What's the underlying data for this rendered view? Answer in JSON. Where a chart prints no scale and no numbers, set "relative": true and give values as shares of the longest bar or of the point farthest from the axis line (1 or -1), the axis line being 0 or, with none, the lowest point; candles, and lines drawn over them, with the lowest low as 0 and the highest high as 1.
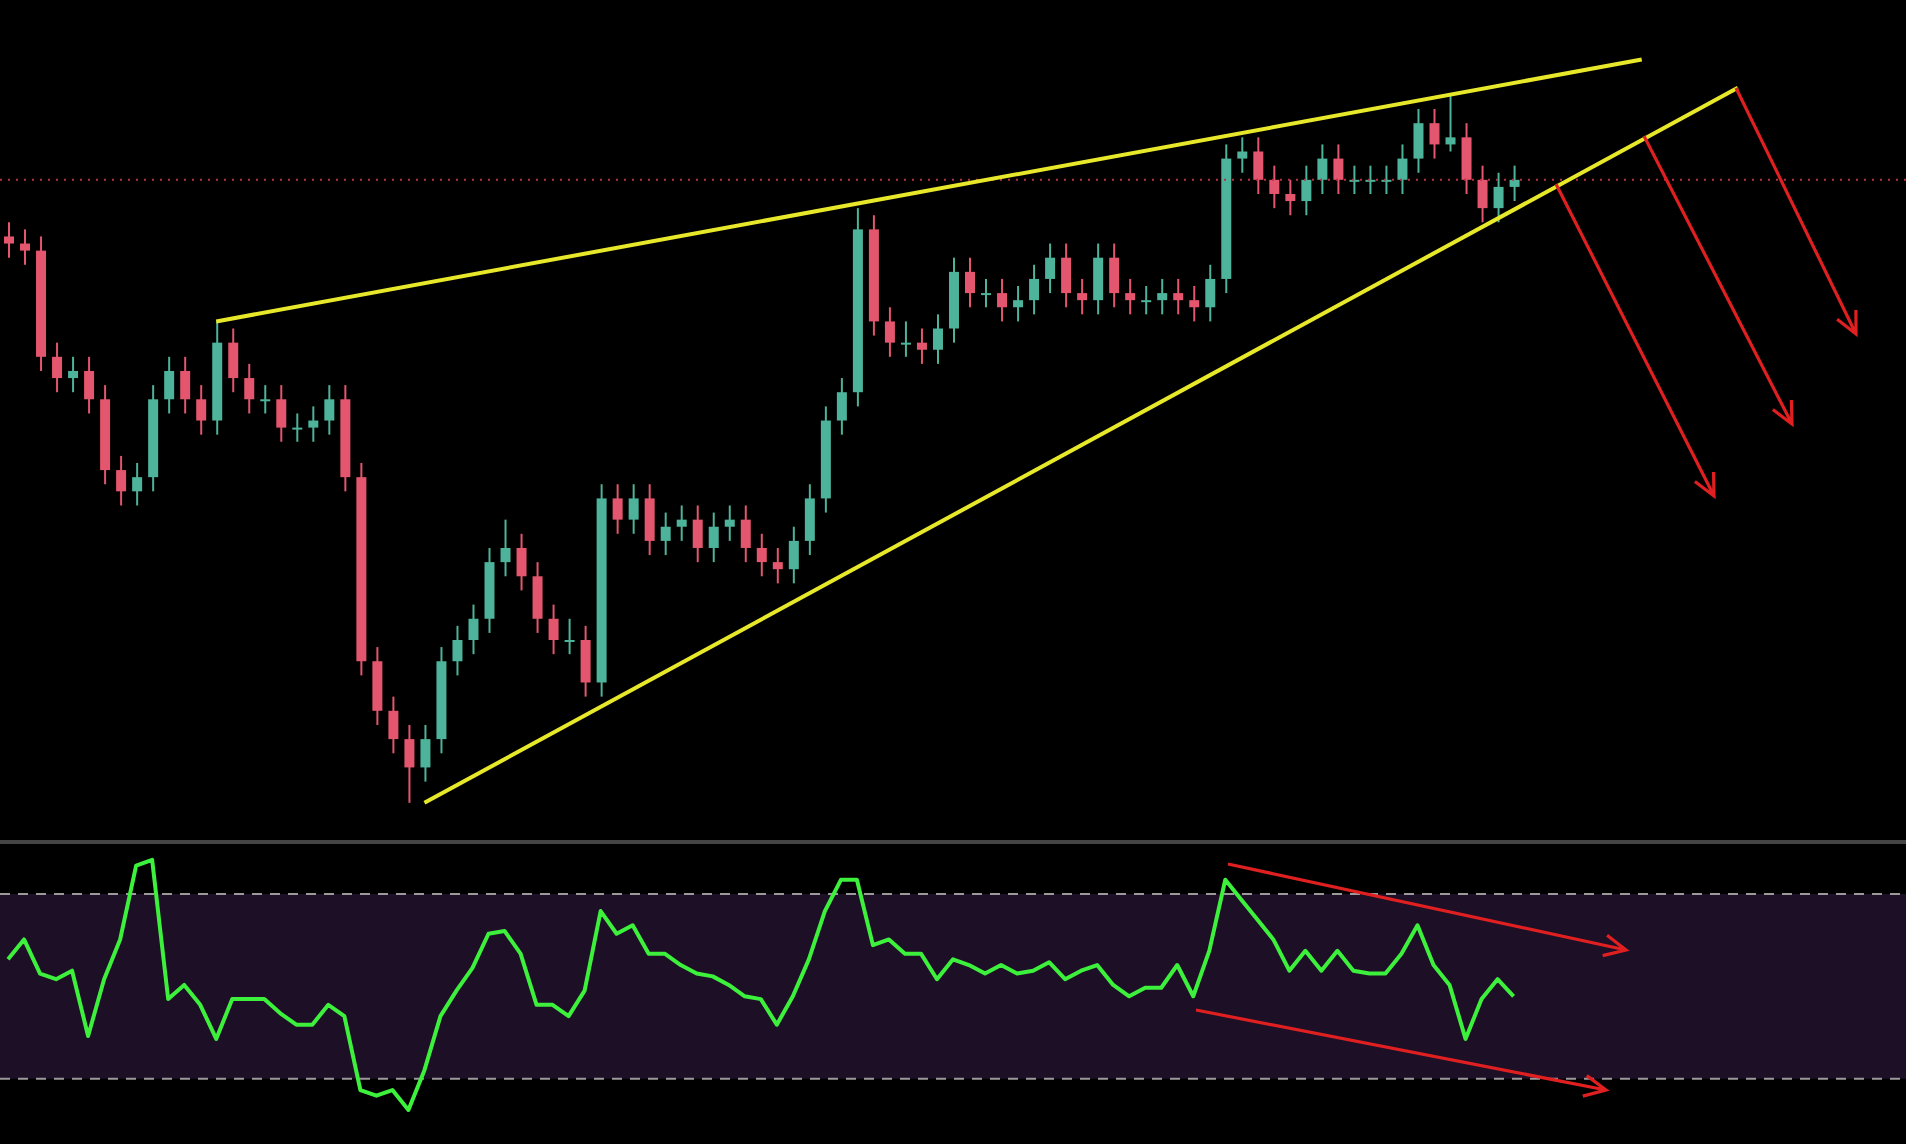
{
  "chart_data": [
    {
      "type": "candlestick",
      "relative": true,
      "tick_labels": false,
      "categories": [
        null,
        null,
        null,
        null,
        null,
        null,
        null,
        null,
        null,
        null,
        null,
        null,
        null,
        null,
        null,
        null,
        null,
        null,
        null,
        null,
        null,
        null,
        null,
        null,
        null,
        null,
        null,
        null,
        null,
        null,
        null,
        null,
        null,
        null,
        null,
        null,
        null,
        null,
        null,
        null,
        null,
        null,
        null,
        null,
        null,
        null,
        null,
        null,
        null,
        null,
        null,
        null,
        null,
        null,
        null,
        null,
        null,
        null,
        null,
        null,
        null,
        null,
        null,
        null,
        null,
        null,
        null,
        null,
        null,
        null,
        null,
        null,
        null,
        null,
        null,
        null,
        null,
        null,
        null,
        null,
        null,
        null,
        null,
        null,
        null,
        null,
        null,
        null,
        null,
        null,
        null,
        null,
        null,
        null,
        null,
        null,
        null,
        null,
        null,
        null,
        null,
        null,
        null,
        null,
        null,
        null,
        null,
        null,
        null,
        null,
        null,
        null,
        null,
        null,
        null,
        null,
        null,
        null,
        null
      ],
      "colors": [
        "#e3566d",
        "#e3566d",
        "#e3566d",
        "#e3566d",
        "#4db39a",
        "#e3566d",
        "#e3566d",
        "#e3566d",
        "#4db39a",
        "#4db39a",
        "#4db39a",
        "#e3566d",
        "#e3566d",
        "#4db39a",
        "#e3566d",
        "#e3566d",
        "#4db39a",
        "#e3566d",
        "#4db39a",
        "#4db39a",
        "#4db39a",
        "#e3566d",
        "#e3566d",
        "#e3566d",
        "#e3566d",
        "#e3566d",
        "#4db39a",
        "#4db39a",
        "#4db39a",
        "#4db39a",
        "#4db39a",
        "#4db39a",
        "#e3566d",
        "#e3566d",
        "#e3566d",
        "#4db39a",
        "#e3566d",
        "#4db39a",
        "#e3566d",
        "#4db39a",
        "#e3566d",
        "#4db39a",
        "#4db39a",
        "#e3566d",
        "#4db39a",
        "#4db39a",
        "#e3566d",
        "#e3566d",
        "#e3566d",
        "#4db39a",
        "#4db39a",
        "#4db39a",
        "#4db39a",
        "#4db39a",
        "#e3566d",
        "#e3566d",
        "#4db39a",
        "#e3566d",
        "#4db39a",
        "#4db39a",
        "#e3566d",
        "#4db39a",
        "#e3566d",
        "#4db39a",
        "#4db39a",
        "#4db39a",
        "#e3566d",
        "#e3566d",
        "#4db39a",
        "#e3566d",
        "#e3566d",
        "#4db39a",
        "#4db39a",
        "#e3566d",
        "#e3566d",
        "#4db39a",
        "#4db39a",
        "#4db39a",
        "#e3566d",
        "#e3566d",
        "#e3566d",
        "#4db39a",
        "#4db39a",
        "#e3566d",
        "#4db39a",
        "#4db39a",
        "#4db39a",
        "#4db39a",
        "#4db39a",
        "#e3566d",
        "#4db39a",
        "#e3566d",
        "#e3566d",
        "#4db39a",
        "#4db39a",
        null,
        null,
        null,
        null,
        null,
        null,
        null,
        null,
        null,
        null,
        null,
        null,
        null,
        null,
        null,
        null,
        null,
        null,
        null,
        null,
        null,
        null,
        null,
        null
      ],
      "ohlc": [
        [
          0.8,
          0.82,
          0.77,
          0.79
        ],
        [
          0.79,
          0.81,
          0.76,
          0.78
        ],
        [
          0.78,
          0.8,
          0.61,
          0.63
        ],
        [
          0.63,
          0.65,
          0.58,
          0.6
        ],
        [
          0.6,
          0.63,
          0.58,
          0.61
        ],
        [
          0.61,
          0.63,
          0.55,
          0.57
        ],
        [
          0.57,
          0.59,
          0.45,
          0.47
        ],
        [
          0.47,
          0.49,
          0.42,
          0.44
        ],
        [
          0.44,
          0.48,
          0.42,
          0.46
        ],
        [
          0.46,
          0.59,
          0.44,
          0.57
        ],
        [
          0.57,
          0.63,
          0.55,
          0.61
        ],
        [
          0.61,
          0.63,
          0.55,
          0.57
        ],
        [
          0.57,
          0.59,
          0.52,
          0.54
        ],
        [
          0.54,
          0.68,
          0.52,
          0.65
        ],
        [
          0.65,
          0.67,
          0.58,
          0.6
        ],
        [
          0.6,
          0.62,
          0.55,
          0.57
        ],
        [
          0.57,
          0.59,
          0.55,
          0.57
        ],
        [
          0.57,
          0.59,
          0.51,
          0.53
        ],
        [
          0.53,
          0.55,
          0.51,
          0.53
        ],
        [
          0.53,
          0.56,
          0.51,
          0.54
        ],
        [
          0.54,
          0.59,
          0.52,
          0.57
        ],
        [
          0.57,
          0.59,
          0.44,
          0.46
        ],
        [
          0.46,
          0.48,
          0.18,
          0.2
        ],
        [
          0.2,
          0.22,
          0.11,
          0.13
        ],
        [
          0.13,
          0.15,
          0.07,
          0.09
        ],
        [
          0.09,
          0.11,
          0.0,
          0.05
        ],
        [
          0.05,
          0.11,
          0.03,
          0.09
        ],
        [
          0.09,
          0.22,
          0.07,
          0.2
        ],
        [
          0.2,
          0.25,
          0.18,
          0.23
        ],
        [
          0.23,
          0.28,
          0.21,
          0.26
        ],
        [
          0.26,
          0.36,
          0.24,
          0.34
        ],
        [
          0.34,
          0.4,
          0.32,
          0.36
        ],
        [
          0.36,
          0.38,
          0.3,
          0.32
        ],
        [
          0.32,
          0.34,
          0.24,
          0.26
        ],
        [
          0.26,
          0.28,
          0.21,
          0.23
        ],
        [
          0.23,
          0.26,
          0.21,
          0.23
        ],
        [
          0.23,
          0.25,
          0.15,
          0.17
        ],
        [
          0.17,
          0.45,
          0.15,
          0.43
        ],
        [
          0.43,
          0.45,
          0.38,
          0.4
        ],
        [
          0.4,
          0.45,
          0.38,
          0.43
        ],
        [
          0.43,
          0.45,
          0.35,
          0.37
        ],
        [
          0.37,
          0.41,
          0.35,
          0.39
        ],
        [
          0.39,
          0.42,
          0.37,
          0.4
        ],
        [
          0.4,
          0.42,
          0.34,
          0.36
        ],
        [
          0.36,
          0.41,
          0.34,
          0.39
        ],
        [
          0.39,
          0.42,
          0.37,
          0.4
        ],
        [
          0.4,
          0.42,
          0.34,
          0.36
        ],
        [
          0.36,
          0.38,
          0.32,
          0.34
        ],
        [
          0.34,
          0.36,
          0.31,
          0.33
        ],
        [
          0.33,
          0.39,
          0.31,
          0.37
        ],
        [
          0.37,
          0.45,
          0.35,
          0.43
        ],
        [
          0.43,
          0.56,
          0.41,
          0.54
        ],
        [
          0.54,
          0.6,
          0.52,
          0.58
        ],
        [
          0.58,
          0.84,
          0.56,
          0.81
        ],
        [
          0.81,
          0.83,
          0.66,
          0.68
        ],
        [
          0.68,
          0.7,
          0.63,
          0.65
        ],
        [
          0.65,
          0.68,
          0.63,
          0.65
        ],
        [
          0.65,
          0.67,
          0.62,
          0.64
        ],
        [
          0.64,
          0.69,
          0.62,
          0.67
        ],
        [
          0.67,
          0.77,
          0.65,
          0.75
        ],
        [
          0.75,
          0.77,
          0.7,
          0.72
        ],
        [
          0.72,
          0.74,
          0.7,
          0.72
        ],
        [
          0.72,
          0.74,
          0.68,
          0.7
        ],
        [
          0.7,
          0.73,
          0.68,
          0.71
        ],
        [
          0.71,
          0.76,
          0.69,
          0.74
        ],
        [
          0.74,
          0.79,
          0.72,
          0.77
        ],
        [
          0.77,
          0.79,
          0.7,
          0.72
        ],
        [
          0.72,
          0.74,
          0.69,
          0.71
        ],
        [
          0.71,
          0.79,
          0.69,
          0.77
        ],
        [
          0.77,
          0.79,
          0.7,
          0.72
        ],
        [
          0.72,
          0.74,
          0.69,
          0.71
        ],
        [
          0.71,
          0.73,
          0.69,
          0.71
        ],
        [
          0.71,
          0.74,
          0.69,
          0.72
        ],
        [
          0.72,
          0.74,
          0.69,
          0.71
        ],
        [
          0.71,
          0.73,
          0.68,
          0.7
        ],
        [
          0.7,
          0.76,
          0.68,
          0.74
        ],
        [
          0.74,
          0.93,
          0.72,
          0.91
        ],
        [
          0.91,
          0.94,
          0.89,
          0.92
        ],
        [
          0.92,
          0.94,
          0.86,
          0.88
        ],
        [
          0.88,
          0.9,
          0.84,
          0.86
        ],
        [
          0.86,
          0.88,
          0.83,
          0.85
        ],
        [
          0.85,
          0.9,
          0.83,
          0.88
        ],
        [
          0.88,
          0.93,
          0.86,
          0.91
        ],
        [
          0.91,
          0.93,
          0.86,
          0.88
        ],
        [
          0.88,
          0.9,
          0.86,
          0.88
        ],
        [
          0.88,
          0.9,
          0.86,
          0.88
        ],
        [
          0.88,
          0.9,
          0.86,
          0.88
        ],
        [
          0.88,
          0.93,
          0.86,
          0.91
        ],
        [
          0.91,
          0.98,
          0.89,
          0.96
        ],
        [
          0.96,
          0.98,
          0.91,
          0.93
        ],
        [
          0.93,
          1.0,
          0.92,
          0.94
        ],
        [
          0.94,
          0.96,
          0.86,
          0.88
        ],
        [
          0.88,
          0.9,
          0.82,
          0.84
        ],
        [
          0.84,
          0.89,
          0.82,
          0.87
        ],
        [
          0.87,
          0.9,
          0.85,
          0.88
        ],
        null,
        null,
        null,
        null,
        null,
        null,
        null,
        null,
        null,
        null,
        null,
        null,
        null,
        null,
        null,
        null,
        null,
        null,
        null,
        null,
        null,
        null,
        null,
        null
      ],
      "series": [
        {
          "type": "line",
          "color": "#e8e82a",
          "values": [
            null,
            null,
            null,
            null,
            null,
            null,
            null,
            null,
            null,
            null,
            null,
            null,
            null,
            0.68,
            null,
            null,
            null,
            null,
            null,
            null,
            null,
            null,
            null,
            null,
            null,
            null,
            null,
            null,
            null,
            null,
            null,
            null,
            null,
            null,
            null,
            null,
            null,
            null,
            null,
            null,
            null,
            null,
            null,
            null,
            null,
            null,
            null,
            null,
            null,
            null,
            null,
            null,
            null,
            null,
            null,
            null,
            null,
            null,
            null,
            null,
            null,
            null,
            null,
            null,
            null,
            null,
            null,
            null,
            null,
            null,
            null,
            null,
            null,
            null,
            null,
            null,
            null,
            null,
            null,
            null,
            null,
            null,
            null,
            null,
            null,
            null,
            null,
            null,
            null,
            null,
            null,
            null,
            null,
            null,
            null,
            null,
            null,
            null,
            null,
            null,
            null,
            null,
            1.05,
            null,
            null,
            null,
            null,
            null,
            null,
            null,
            null,
            null,
            null,
            null,
            null,
            null,
            null,
            null,
            null
          ]
        },
        {
          "type": "line",
          "color": "#e8e82a",
          "values": [
            null,
            null,
            null,
            null,
            null,
            null,
            null,
            null,
            null,
            null,
            null,
            null,
            null,
            null,
            null,
            null,
            null,
            null,
            null,
            null,
            null,
            null,
            null,
            null,
            null,
            null,
            0,
            null,
            null,
            null,
            null,
            null,
            null,
            null,
            null,
            null,
            null,
            null,
            null,
            null,
            null,
            null,
            null,
            null,
            null,
            null,
            null,
            null,
            null,
            null,
            null,
            null,
            null,
            null,
            null,
            null,
            null,
            null,
            null,
            null,
            null,
            null,
            null,
            null,
            null,
            null,
            null,
            null,
            null,
            null,
            null,
            null,
            null,
            null,
            null,
            null,
            null,
            null,
            null,
            null,
            null,
            null,
            null,
            null,
            null,
            null,
            null,
            null,
            null,
            null,
            null,
            null,
            null,
            null,
            null,
            null,
            null,
            null,
            null,
            null,
            null,
            null,
            null,
            null,
            null,
            null,
            null,
            null,
            1.01,
            null,
            null,
            null,
            null,
            null,
            null,
            null,
            null,
            null,
            null
          ]
        }
      ],
      "ref_lines": [
        {
          "axis": "y",
          "value": 0.88,
          "color": "#b8333f",
          "line_style": "dotted"
        }
      ]
    },
    {
      "type": "line",
      "relative": true,
      "tick_labels": false,
      "categories": [
        null,
        null,
        null,
        null,
        null,
        null,
        null,
        null,
        null,
        null,
        null,
        null,
        null,
        null,
        null,
        null,
        null,
        null,
        null,
        null,
        null,
        null,
        null,
        null,
        null,
        null,
        null,
        null,
        null,
        null,
        null,
        null,
        null,
        null,
        null,
        null,
        null,
        null,
        null,
        null,
        null,
        null,
        null,
        null,
        null,
        null,
        null,
        null,
        null,
        null,
        null,
        null,
        null,
        null,
        null,
        null,
        null,
        null,
        null,
        null,
        null,
        null,
        null,
        null,
        null,
        null,
        null,
        null,
        null,
        null,
        null,
        null,
        null,
        null,
        null,
        null,
        null,
        null,
        null,
        null,
        null,
        null,
        null,
        null,
        null,
        null,
        null,
        null,
        null,
        null,
        null,
        null,
        null,
        null,
        null,
        null,
        null,
        null,
        null,
        null,
        null,
        null,
        null,
        null,
        null,
        null,
        null,
        null,
        null,
        null,
        null,
        null,
        null,
        null,
        null,
        null,
        null,
        null,
        null
      ],
      "series": [
        {
          "color": "#3cf03c",
          "values": [
            0.65,
            0.72,
            0.6,
            0.58,
            0.61,
            0.38,
            0.58,
            0.72,
            0.98,
            1.0,
            0.51,
            0.56,
            0.49,
            0.37,
            0.51,
            0.51,
            0.51,
            0.46,
            0.42,
            0.42,
            0.49,
            0.45,
            0.19,
            0.17,
            0.19,
            0.12,
            0.26,
            0.45,
            0.54,
            0.62,
            0.74,
            0.75,
            0.67,
            0.49,
            0.49,
            0.45,
            0.54,
            0.82,
            0.74,
            0.77,
            0.67,
            0.67,
            0.63,
            0.6,
            0.59,
            0.56,
            0.52,
            0.51,
            0.42,
            0.52,
            0.65,
            0.82,
            0.93,
            0.93,
            0.7,
            0.72,
            0.67,
            0.67,
            0.58,
            0.65,
            0.63,
            0.6,
            0.63,
            0.6,
            0.61,
            0.64,
            0.58,
            0.61,
            0.63,
            0.56,
            0.52,
            0.55,
            0.55,
            0.63,
            0.52,
            0.68,
            0.93,
            0.86,
            0.79,
            0.72,
            0.61,
            0.68,
            0.61,
            0.68,
            0.61,
            0.6,
            0.6,
            0.67,
            0.77,
            0.63,
            0.56,
            0.37,
            0.51,
            0.58,
            0.52,
            null,
            null,
            null,
            null,
            null,
            null,
            null,
            null,
            null,
            null,
            null,
            null,
            null,
            null,
            null,
            null,
            null,
            null,
            null,
            null,
            null,
            null,
            null,
            null
          ]
        }
      ],
      "ref_lines": [
        {
          "axis": "y",
          "value": 0.88,
          "color": "#9a9a9a",
          "line_style": "dashed"
        },
        {
          "axis": "y",
          "value": 0.23,
          "color": "#9a9a9a",
          "line_style": "dashed"
        }
      ],
      "bands": [
        {
          "axis": "y",
          "from": 0.23,
          "to": 0.88,
          "color": "#1c0f26"
        }
      ]
    }
  ]
}
